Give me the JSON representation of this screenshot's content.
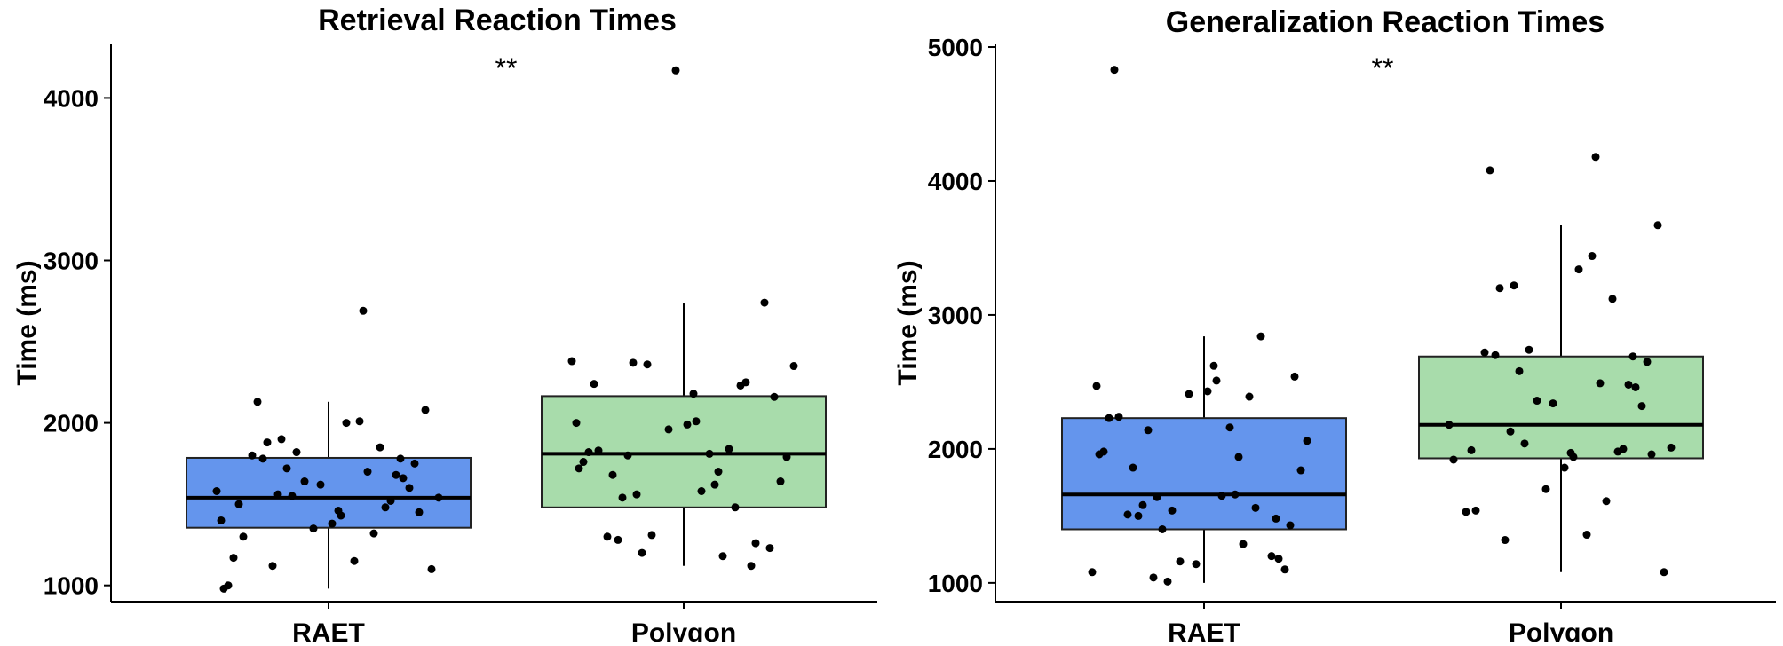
{
  "chart_data": [
    {
      "type": "box",
      "title": "Retrieval Reaction Times",
      "ylabel": "Time (ms)",
      "xlabel": "",
      "ylim": [
        900,
        4330
      ],
      "yticks": [
        1000,
        2000,
        3000,
        4000
      ],
      "categories": [
        "RAET",
        "Polygon"
      ],
      "colors": [
        "#6495ed",
        "#a8dcab"
      ],
      "significance": "**",
      "boxes": [
        {
          "category": "RAET",
          "whisker_low": 980,
          "q1": 1355,
          "median": 1540,
          "q3": 1785,
          "whisker_high": 2130
        },
        {
          "category": "Polygon",
          "whisker_low": 1120,
          "q1": 1480,
          "median": 1810,
          "q3": 2165,
          "whisker_high": 2735
        }
      ],
      "points": [
        [
          980,
          1000,
          1100,
          1120,
          1150,
          1170,
          1300,
          1320,
          1350,
          1380,
          1400,
          1430,
          1450,
          1460,
          1480,
          1500,
          1520,
          1540,
          1550,
          1560,
          1580,
          1600,
          1620,
          1640,
          1660,
          1680,
          1700,
          1720,
          1750,
          1780,
          1780,
          1800,
          1820,
          1850,
          1880,
          1900,
          2000,
          2010,
          2080,
          2130,
          2690
        ],
        [
          1120,
          1180,
          1200,
          1230,
          1260,
          1280,
          1300,
          1310,
          1480,
          1540,
          1560,
          1580,
          1620,
          1640,
          1680,
          1700,
          1720,
          1760,
          1790,
          1800,
          1810,
          1820,
          1830,
          1840,
          1960,
          1990,
          2000,
          2010,
          2160,
          2180,
          2230,
          2240,
          2250,
          2350,
          2360,
          2370,
          2380,
          2740,
          4170
        ]
      ]
    },
    {
      "type": "box",
      "title": "Generalization Reaction Times",
      "ylabel": "Time (ms)",
      "xlabel": "",
      "ylim": [
        860,
        5020
      ],
      "yticks": [
        1000,
        2000,
        3000,
        4000,
        5000
      ],
      "categories": [
        "RAET",
        "Polygon"
      ],
      "colors": [
        "#6495ed",
        "#a8dcab"
      ],
      "significance": "**",
      "boxes": [
        {
          "category": "RAET",
          "whisker_low": 1000,
          "q1": 1400,
          "median": 1660,
          "q3": 2230,
          "whisker_high": 2840
        },
        {
          "category": "Polygon",
          "whisker_low": 1080,
          "q1": 1930,
          "median": 2180,
          "q3": 2690,
          "whisker_high": 3670
        }
      ],
      "points": [
        [
          1010,
          1040,
          1080,
          1100,
          1140,
          1160,
          1180,
          1200,
          1290,
          1400,
          1430,
          1480,
          1500,
          1510,
          1540,
          1560,
          1580,
          1640,
          1650,
          1660,
          1840,
          1860,
          1940,
          1960,
          1980,
          2060,
          2140,
          2160,
          2230,
          2240,
          2390,
          2410,
          2430,
          2470,
          2510,
          2540,
          2620,
          2840,
          4830
        ],
        [
          1080,
          1320,
          1360,
          1530,
          1540,
          1610,
          1700,
          1860,
          1920,
          1940,
          1960,
          1970,
          1980,
          1990,
          2000,
          2010,
          2040,
          2130,
          2180,
          2320,
          2340,
          2360,
          2460,
          2480,
          2490,
          2580,
          2650,
          2690,
          2700,
          2720,
          2740,
          3120,
          3200,
          3220,
          3340,
          3440,
          3670,
          4080,
          4180
        ]
      ]
    }
  ]
}
